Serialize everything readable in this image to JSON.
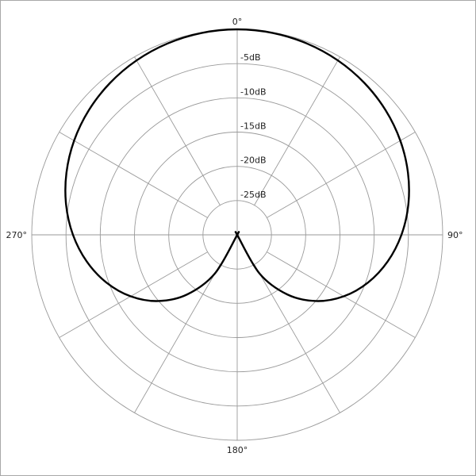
{
  "chart_data": {
    "type": "polar-line",
    "title": "",
    "angle_labels": [
      {
        "angle": 0,
        "label": "0°"
      },
      {
        "angle": 90,
        "label": "90°"
      },
      {
        "angle": 180,
        "label": "180°"
      },
      {
        "angle": 270,
        "label": "270°"
      }
    ],
    "radial_axis": {
      "unit": "dB",
      "range": [
        -30,
        0
      ],
      "ticks": [
        0,
        -5,
        -10,
        -15,
        -20,
        -25
      ],
      "tick_labels": [
        "",
        "-5dB",
        "-10dB",
        "-15dB",
        "-20dB",
        "-25dB"
      ]
    },
    "spoke_step_deg": 30,
    "grid": true,
    "colors": {
      "grid": "#9a9a9a",
      "series": "#000000"
    },
    "series": [
      {
        "angles": [
          0,
          10,
          20,
          30,
          40,
          50,
          60,
          70,
          80,
          90,
          100,
          110,
          120,
          130,
          140,
          150,
          160,
          170,
          180,
          190,
          200,
          210,
          220,
          230,
          240,
          250,
          260,
          270,
          280,
          290,
          300,
          310,
          320,
          330,
          340,
          350
        ],
        "values": [
          0,
          -0.07,
          -0.27,
          -0.6,
          -1.08,
          -1.71,
          -2.5,
          -3.47,
          -4.63,
          -6.02,
          -7.68,
          -9.66,
          -12.04,
          -14.96,
          -18.64,
          -23.48,
          -30,
          -30,
          -30,
          -30,
          -30,
          -23.48,
          -18.64,
          -14.96,
          -12.04,
          -9.66,
          -7.68,
          -6.02,
          -4.63,
          -3.47,
          -2.5,
          -1.71,
          -1.08,
          -0.6,
          -0.27,
          -0.07
        ]
      }
    ]
  }
}
